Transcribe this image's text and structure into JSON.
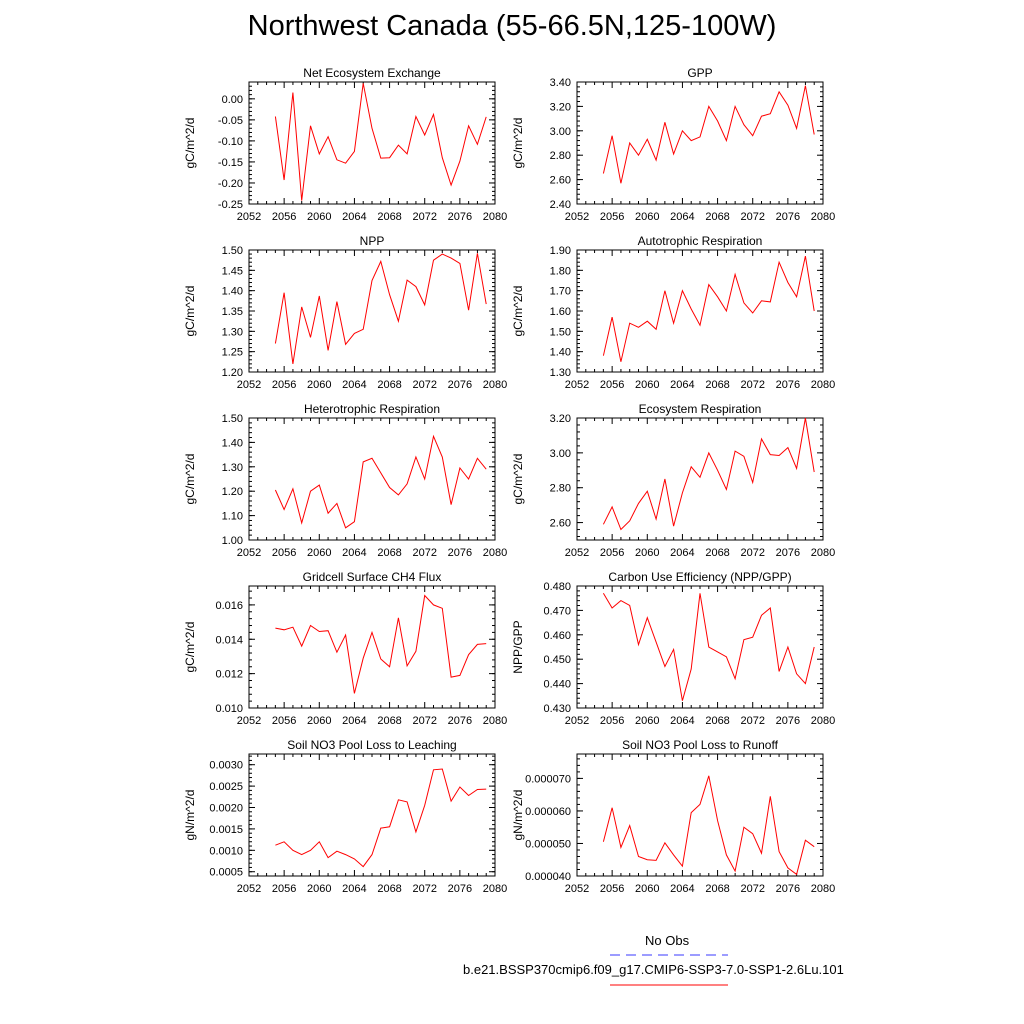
{
  "title": "Northwest Canada (55-66.5N,125-100W)",
  "colors": {
    "model": "#ff0000",
    "obs": "#3a3aff",
    "axis": "#000000"
  },
  "legend": {
    "obs_label": "No Obs",
    "case_label": "b.e21.BSSP370cmip6.f09_g17.CMIP6-SSP3-7.0-SSP1-2.6Lu.101"
  },
  "chart_data": [
    {
      "type": "line",
      "title": "Net Ecosystem Exchange",
      "ylabel": "gC/m^2/d",
      "xlabel": "",
      "xlim": [
        2052,
        2080
      ],
      "ylim": [
        -0.25,
        0.04
      ],
      "xticks": [
        "2052",
        "2056",
        "2060",
        "2064",
        "2068",
        "2072",
        "2076",
        "2080"
      ],
      "yticks": [
        "-0.25",
        "-0.20",
        "-0.15",
        "-0.10",
        "-0.05",
        "0.00"
      ],
      "x": [
        2055,
        2056,
        2057,
        2058,
        2059,
        2060,
        2061,
        2062,
        2063,
        2064,
        2065,
        2066,
        2067,
        2068,
        2069,
        2070,
        2071,
        2072,
        2073,
        2074,
        2075,
        2076,
        2077,
        2078,
        2079
      ],
      "y": [
        -0.042,
        -0.193,
        0.015,
        -0.242,
        -0.064,
        -0.131,
        -0.09,
        -0.145,
        -0.153,
        -0.125,
        0.037,
        -0.07,
        -0.141,
        -0.14,
        -0.11,
        -0.131,
        -0.042,
        -0.086,
        -0.037,
        -0.14,
        -0.205,
        -0.148,
        -0.064,
        -0.108,
        -0.043
      ]
    },
    {
      "type": "line",
      "title": "GPP",
      "ylabel": "gC/m^2/d",
      "xlabel": "",
      "xlim": [
        2052,
        2080
      ],
      "ylim": [
        2.4,
        3.4
      ],
      "xticks": [
        "2052",
        "2056",
        "2060",
        "2064",
        "2068",
        "2072",
        "2076",
        "2080"
      ],
      "yticks": [
        "2.40",
        "2.60",
        "2.80",
        "3.00",
        "3.20",
        "3.40"
      ],
      "x": [
        2055,
        2056,
        2057,
        2058,
        2059,
        2060,
        2061,
        2062,
        2063,
        2064,
        2065,
        2066,
        2067,
        2068,
        2069,
        2070,
        2071,
        2072,
        2073,
        2074,
        2075,
        2076,
        2077,
        2078,
        2079
      ],
      "y": [
        2.65,
        2.96,
        2.57,
        2.9,
        2.8,
        2.93,
        2.76,
        3.07,
        2.81,
        3.0,
        2.92,
        2.95,
        3.2,
        3.08,
        2.92,
        3.2,
        3.05,
        2.96,
        3.12,
        3.14,
        3.32,
        3.21,
        3.02,
        3.37,
        2.97
      ]
    },
    {
      "type": "line",
      "title": "NPP",
      "ylabel": "gC/m^2/d",
      "xlabel": "",
      "xlim": [
        2052,
        2080
      ],
      "ylim": [
        1.2,
        1.5
      ],
      "xticks": [
        "2052",
        "2056",
        "2060",
        "2064",
        "2068",
        "2072",
        "2076",
        "2080"
      ],
      "yticks": [
        "1.20",
        "1.25",
        "1.30",
        "1.35",
        "1.40",
        "1.45",
        "1.50"
      ],
      "x": [
        2055,
        2056,
        2057,
        2058,
        2059,
        2060,
        2061,
        2062,
        2063,
        2064,
        2065,
        2066,
        2067,
        2068,
        2069,
        2070,
        2071,
        2072,
        2073,
        2074,
        2075,
        2076,
        2077,
        2078,
        2079
      ],
      "y": [
        1.27,
        1.395,
        1.22,
        1.36,
        1.285,
        1.387,
        1.253,
        1.373,
        1.268,
        1.295,
        1.305,
        1.425,
        1.472,
        1.39,
        1.325,
        1.426,
        1.41,
        1.365,
        1.475,
        1.49,
        1.48,
        1.467,
        1.352,
        1.492,
        1.367
      ]
    },
    {
      "type": "line",
      "title": "Autotrophic Respiration",
      "ylabel": "gC/m^2/d",
      "xlabel": "",
      "xlim": [
        2052,
        2080
      ],
      "ylim": [
        1.3,
        1.9
      ],
      "xticks": [
        "2052",
        "2056",
        "2060",
        "2064",
        "2068",
        "2072",
        "2076",
        "2080"
      ],
      "yticks": [
        "1.30",
        "1.40",
        "1.50",
        "1.60",
        "1.70",
        "1.80",
        "1.90"
      ],
      "x": [
        2055,
        2056,
        2057,
        2058,
        2059,
        2060,
        2061,
        2062,
        2063,
        2064,
        2065,
        2066,
        2067,
        2068,
        2069,
        2070,
        2071,
        2072,
        2073,
        2074,
        2075,
        2076,
        2077,
        2078,
        2079
      ],
      "y": [
        1.38,
        1.57,
        1.35,
        1.54,
        1.52,
        1.55,
        1.51,
        1.7,
        1.54,
        1.7,
        1.61,
        1.53,
        1.73,
        1.67,
        1.6,
        1.78,
        1.64,
        1.59,
        1.65,
        1.645,
        1.84,
        1.74,
        1.67,
        1.87,
        1.6
      ]
    },
    {
      "type": "line",
      "title": "Heterotrophic Respiration",
      "ylabel": "gC/m^2/d",
      "xlabel": "",
      "xlim": [
        2052,
        2080
      ],
      "ylim": [
        1.0,
        1.5
      ],
      "xticks": [
        "2052",
        "2056",
        "2060",
        "2064",
        "2068",
        "2072",
        "2076",
        "2080"
      ],
      "yticks": [
        "1.00",
        "1.10",
        "1.20",
        "1.30",
        "1.40",
        "1.50"
      ],
      "x": [
        2055,
        2056,
        2057,
        2058,
        2059,
        2060,
        2061,
        2062,
        2063,
        2064,
        2065,
        2066,
        2067,
        2068,
        2069,
        2070,
        2071,
        2072,
        2073,
        2074,
        2075,
        2076,
        2077,
        2078,
        2079
      ],
      "y": [
        1.205,
        1.125,
        1.21,
        1.07,
        1.2,
        1.225,
        1.11,
        1.15,
        1.05,
        1.075,
        1.32,
        1.335,
        1.275,
        1.215,
        1.185,
        1.23,
        1.34,
        1.25,
        1.425,
        1.34,
        1.145,
        1.295,
        1.25,
        1.335,
        1.29
      ]
    },
    {
      "type": "line",
      "title": "Ecosystem Respiration",
      "ylabel": "gC/m^2/d",
      "xlabel": "",
      "xlim": [
        2052,
        2080
      ],
      "ylim": [
        2.5,
        3.2
      ],
      "xticks": [
        "2052",
        "2056",
        "2060",
        "2064",
        "2068",
        "2072",
        "2076",
        "2080"
      ],
      "yticks": [
        "2.60",
        "2.80",
        "3.00",
        "3.20"
      ],
      "x": [
        2055,
        2056,
        2057,
        2058,
        2059,
        2060,
        2061,
        2062,
        2063,
        2064,
        2065,
        2066,
        2067,
        2068,
        2069,
        2070,
        2071,
        2072,
        2073,
        2074,
        2075,
        2076,
        2077,
        2078,
        2079
      ],
      "y": [
        2.59,
        2.69,
        2.56,
        2.61,
        2.71,
        2.78,
        2.62,
        2.85,
        2.58,
        2.77,
        2.92,
        2.86,
        3.0,
        2.9,
        2.79,
        3.01,
        2.98,
        2.83,
        3.08,
        2.99,
        2.985,
        3.03,
        2.91,
        3.2,
        2.89
      ]
    },
    {
      "type": "line",
      "title": "Gridcell Surface CH4 Flux",
      "ylabel": "gC/m^2/d",
      "xlabel": "",
      "xlim": [
        2052,
        2080
      ],
      "ylim": [
        0.01,
        0.0171
      ],
      "xticks": [
        "2052",
        "2056",
        "2060",
        "2064",
        "2068",
        "2072",
        "2076",
        "2080"
      ],
      "yticks": [
        "0.010",
        "0.012",
        "0.014",
        "0.016"
      ],
      "x": [
        2055,
        2056,
        2057,
        2058,
        2059,
        2060,
        2061,
        2062,
        2063,
        2064,
        2065,
        2066,
        2067,
        2068,
        2069,
        2070,
        2071,
        2072,
        2073,
        2074,
        2075,
        2076,
        2077,
        2078,
        2079
      ],
      "y": [
        0.01465,
        0.01455,
        0.0147,
        0.0136,
        0.0148,
        0.01445,
        0.0145,
        0.01325,
        0.01425,
        0.01085,
        0.0129,
        0.0144,
        0.01285,
        0.0124,
        0.01525,
        0.01245,
        0.0133,
        0.01655,
        0.016,
        0.0158,
        0.0118,
        0.0119,
        0.0131,
        0.0137,
        0.01375
      ]
    },
    {
      "type": "line",
      "title": "Carbon Use Efficiency (NPP/GPP)",
      "ylabel": "NPP/GPP",
      "xlabel": "",
      "xlim": [
        2052,
        2080
      ],
      "ylim": [
        0.43,
        0.48
      ],
      "xticks": [
        "2052",
        "2056",
        "2060",
        "2064",
        "2068",
        "2072",
        "2076",
        "2080"
      ],
      "yticks": [
        "0.430",
        "0.440",
        "0.450",
        "0.460",
        "0.470",
        "0.480"
      ],
      "x": [
        2055,
        2056,
        2057,
        2058,
        2059,
        2060,
        2061,
        2062,
        2063,
        2064,
        2065,
        2066,
        2067,
        2068,
        2069,
        2070,
        2071,
        2072,
        2073,
        2074,
        2075,
        2076,
        2077,
        2078,
        2079
      ],
      "y": [
        0.477,
        0.471,
        0.474,
        0.472,
        0.456,
        0.467,
        0.457,
        0.447,
        0.454,
        0.433,
        0.446,
        0.477,
        0.455,
        0.453,
        0.451,
        0.442,
        0.458,
        0.459,
        0.468,
        0.471,
        0.445,
        0.455,
        0.444,
        0.44,
        0.455
      ]
    },
    {
      "type": "line",
      "title": "Soil NO3 Pool Loss to Leaching",
      "ylabel": "gN/m^2/d",
      "xlabel": "",
      "xlim": [
        2052,
        2080
      ],
      "ylim": [
        0.0004,
        0.00325
      ],
      "xticks": [
        "2052",
        "2056",
        "2060",
        "2064",
        "2068",
        "2072",
        "2076",
        "2080"
      ],
      "yticks": [
        "0.0005",
        "0.0010",
        "0.0015",
        "0.0020",
        "0.0025",
        "0.0030"
      ],
      "x": [
        2055,
        2056,
        2057,
        2058,
        2059,
        2060,
        2061,
        2062,
        2063,
        2064,
        2065,
        2066,
        2067,
        2068,
        2069,
        2070,
        2071,
        2072,
        2073,
        2074,
        2075,
        2076,
        2077,
        2078,
        2079
      ],
      "y": [
        0.00112,
        0.0012,
        0.001,
        0.0009,
        0.001,
        0.0012,
        0.00083,
        0.00098,
        0.0009,
        0.0008,
        0.00062,
        0.0009,
        0.00152,
        0.00155,
        0.00218,
        0.00213,
        0.00143,
        0.00205,
        0.00288,
        0.0029,
        0.00215,
        0.00248,
        0.00228,
        0.00242,
        0.00243
      ]
    },
    {
      "type": "line",
      "title": "Soil NO3 Pool Loss to Runoff",
      "ylabel": "gN/m^2/d",
      "xlabel": "",
      "xlim": [
        2052,
        2080
      ],
      "ylim": [
        4e-05,
        7.75e-05
      ],
      "xticks": [
        "2052",
        "2056",
        "2060",
        "2064",
        "2068",
        "2072",
        "2076",
        "2080"
      ],
      "yticks": [
        "0.000040",
        "0.000050",
        "0.000060",
        "0.000070"
      ],
      "x": [
        2055,
        2056,
        2057,
        2058,
        2059,
        2060,
        2061,
        2062,
        2063,
        2064,
        2065,
        2066,
        2067,
        2068,
        2069,
        2070,
        2071,
        2072,
        2073,
        2074,
        2075,
        2076,
        2077,
        2078,
        2079
      ],
      "y": [
        5.05e-05,
        6.1e-05,
        4.88e-05,
        5.55e-05,
        4.6e-05,
        4.5e-05,
        4.48e-05,
        5.02e-05,
        4.65e-05,
        4.3e-05,
        5.95e-05,
        6.2e-05,
        7.08e-05,
        5.7e-05,
        4.65e-05,
        4.15e-05,
        5.5e-05,
        5.3e-05,
        4.7e-05,
        6.45e-05,
        4.75e-05,
        4.25e-05,
        4.05e-05,
        5.1e-05,
        4.9e-05
      ]
    }
  ]
}
